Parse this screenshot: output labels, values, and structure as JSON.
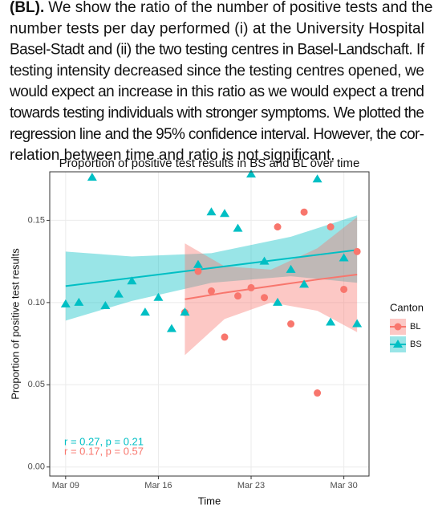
{
  "paragraph": {
    "lead": "(BL).",
    "lines": [
      "We show the ratio of the number of positive tests and the",
      "number tests per day performed (i) at the University Hospital",
      "Basel-Stadt and (ii) the two testing centres in Basel-Landschaft. If",
      "testing intensity decreased since the testing centres opened, we",
      "would expect an increase in this ratio as we would expect a trend",
      "towards testing individuals with stronger symptoms. We plotted the",
      "regression line and the 95% confidence interval. However, the cor-",
      "relation between time and ratio is not significant."
    ]
  },
  "chart_data": {
    "type": "scatter",
    "title": "Proportion of positive test results in BS and BL over time",
    "x_label": "Time",
    "y_label": "Proportion of positive test results",
    "legend_title": "Canton",
    "legend": "right",
    "grid": true,
    "xlim": [
      7.8,
      31.9
    ],
    "ylim": [
      -0.0055,
      0.1795
    ],
    "xticks": [
      {
        "value": 9,
        "label": "Mar 09"
      },
      {
        "value": 16,
        "label": "Mar 16"
      },
      {
        "value": 23,
        "label": "Mar 23"
      },
      {
        "value": 30,
        "label": "Mar 30"
      }
    ],
    "yticks": [
      {
        "value": 0,
        "label": "0.00"
      },
      {
        "value": 0.05,
        "label": "0.05"
      },
      {
        "value": 0.1,
        "label": "0.10"
      },
      {
        "value": 0.15,
        "label": "0.15"
      }
    ],
    "series": [
      {
        "name": "BL",
        "color": "#F8766D",
        "marker": "circle",
        "x": [
          18,
          19,
          20,
          21,
          22,
          23,
          24,
          25,
          26,
          27,
          28,
          29,
          30,
          31
        ],
        "values": [
          0.094,
          0.119,
          0.107,
          0.079,
          0.104,
          0.109,
          0.103,
          0.146,
          0.087,
          0.155,
          0.045,
          0.146,
          0.108,
          0.131
        ],
        "fit_x": [
          18,
          21,
          24.5,
          28,
          31
        ],
        "fit": [
          0.102,
          0.106,
          0.11,
          0.114,
          0.117
        ],
        "fit_lower": [
          0.068,
          0.09,
          0.1,
          0.095,
          0.082
        ],
        "fit_upper": [
          0.136,
          0.122,
          0.12,
          0.133,
          0.152
        ]
      },
      {
        "name": "BS",
        "color": "#00BFC4",
        "marker": "triangle",
        "x": [
          9,
          10,
          11,
          12,
          13,
          14,
          15,
          16,
          17,
          18,
          19,
          20,
          21,
          22,
          23,
          24,
          25,
          26,
          27,
          28,
          29,
          30,
          31
        ],
        "values": [
          0.099,
          0.1,
          0.176,
          0.098,
          0.105,
          0.113,
          0.094,
          0.103,
          0.084,
          0.094,
          0.123,
          0.155,
          0.154,
          0.145,
          0.178,
          0.125,
          0.1,
          0.12,
          0.111,
          0.175,
          0.088,
          0.127,
          0.087
        ],
        "fit_x": [
          9,
          14,
          20,
          26,
          31
        ],
        "fit": [
          0.11,
          0.115,
          0.121,
          0.127,
          0.132
        ],
        "fit_lower": [
          0.089,
          0.101,
          0.112,
          0.116,
          0.112
        ],
        "fit_upper": [
          0.131,
          0.128,
          0.13,
          0.14,
          0.153
        ]
      }
    ],
    "annotations": [
      {
        "text": "r = 0.27, p = 0.21",
        "color": "#00BFC4"
      },
      {
        "text": "r = 0.17, p = 0.57",
        "color": "#F8766D"
      }
    ]
  }
}
